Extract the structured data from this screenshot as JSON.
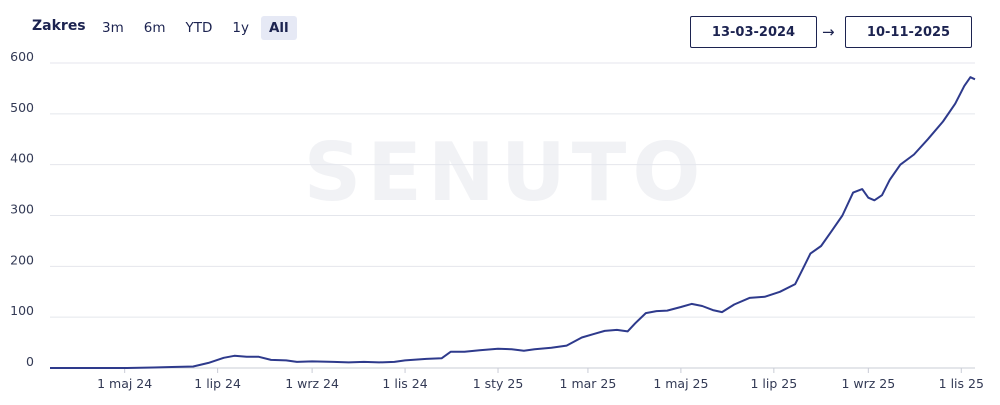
{
  "toolbar": {
    "range_label": "Zakres",
    "range_buttons": [
      "3m",
      "6m",
      "YTD",
      "1y",
      "All"
    ],
    "active_range": "All",
    "date_from": "13-03-2024",
    "date_to": "10-11-2025",
    "arrow": "→"
  },
  "watermark": "SENUTO",
  "colors": {
    "line": "#2e3a8c",
    "grid": "#e4e6ec",
    "text": "#1c2350"
  },
  "chart_data": {
    "type": "line",
    "title": "",
    "xlabel": "",
    "ylabel": "",
    "ylim": [
      0,
      600
    ],
    "y_ticks": [
      0,
      100,
      200,
      300,
      400,
      500,
      600
    ],
    "x_range": [
      "2024-03-13",
      "2025-11-10"
    ],
    "x_ticks": [
      {
        "date": "2024-05-01",
        "label": "1 maj 24"
      },
      {
        "date": "2024-07-01",
        "label": "1 lip 24"
      },
      {
        "date": "2024-09-01",
        "label": "1 wrz 24"
      },
      {
        "date": "2024-11-01",
        "label": "1 lis 24"
      },
      {
        "date": "2025-01-01",
        "label": "1 sty 25"
      },
      {
        "date": "2025-03-01",
        "label": "1 mar 25"
      },
      {
        "date": "2025-05-01",
        "label": "1 maj 25"
      },
      {
        "date": "2025-07-01",
        "label": "1 lip 25"
      },
      {
        "date": "2025-09-01",
        "label": "1 wrz 25"
      },
      {
        "date": "2025-11-01",
        "label": "1 lis 25"
      }
    ],
    "grid": true,
    "legend": "none",
    "series": [
      {
        "points": [
          [
            "2024-03-13",
            0
          ],
          [
            "2024-04-01",
            0
          ],
          [
            "2024-05-01",
            0
          ],
          [
            "2024-05-20",
            1
          ],
          [
            "2024-06-01",
            2
          ],
          [
            "2024-06-15",
            3
          ],
          [
            "2024-06-25",
            10
          ],
          [
            "2024-07-05",
            20
          ],
          [
            "2024-07-12",
            24
          ],
          [
            "2024-07-20",
            22
          ],
          [
            "2024-07-28",
            22
          ],
          [
            "2024-08-05",
            16
          ],
          [
            "2024-08-15",
            15
          ],
          [
            "2024-08-22",
            12
          ],
          [
            "2024-09-01",
            13
          ],
          [
            "2024-09-15",
            12
          ],
          [
            "2024-09-25",
            11
          ],
          [
            "2024-10-05",
            12
          ],
          [
            "2024-10-15",
            11
          ],
          [
            "2024-10-25",
            12
          ],
          [
            "2024-11-01",
            15
          ],
          [
            "2024-11-15",
            18
          ],
          [
            "2024-11-25",
            19
          ],
          [
            "2024-12-01",
            32
          ],
          [
            "2024-12-10",
            32
          ],
          [
            "2024-12-20",
            35
          ],
          [
            "2025-01-01",
            38
          ],
          [
            "2025-01-10",
            37
          ],
          [
            "2025-01-18",
            34
          ],
          [
            "2025-01-25",
            37
          ],
          [
            "2025-02-05",
            40
          ],
          [
            "2025-02-15",
            44
          ],
          [
            "2025-02-25",
            60
          ],
          [
            "2025-03-05",
            67
          ],
          [
            "2025-03-12",
            73
          ],
          [
            "2025-03-20",
            75
          ],
          [
            "2025-03-27",
            72
          ],
          [
            "2025-04-01",
            88
          ],
          [
            "2025-04-08",
            108
          ],
          [
            "2025-04-15",
            112
          ],
          [
            "2025-04-22",
            113
          ],
          [
            "2025-05-01",
            120
          ],
          [
            "2025-05-08",
            126
          ],
          [
            "2025-05-15",
            122
          ],
          [
            "2025-05-22",
            114
          ],
          [
            "2025-05-28",
            110
          ],
          [
            "2025-06-05",
            125
          ],
          [
            "2025-06-15",
            138
          ],
          [
            "2025-06-25",
            140
          ],
          [
            "2025-07-05",
            150
          ],
          [
            "2025-07-15",
            165
          ],
          [
            "2025-07-20",
            195
          ],
          [
            "2025-07-25",
            225
          ],
          [
            "2025-08-01",
            240
          ],
          [
            "2025-08-08",
            270
          ],
          [
            "2025-08-15",
            300
          ],
          [
            "2025-08-22",
            345
          ],
          [
            "2025-08-28",
            352
          ],
          [
            "2025-09-01",
            335
          ],
          [
            "2025-09-05",
            330
          ],
          [
            "2025-09-10",
            340
          ],
          [
            "2025-09-15",
            370
          ],
          [
            "2025-09-22",
            400
          ],
          [
            "2025-10-01",
            420
          ],
          [
            "2025-10-10",
            450
          ],
          [
            "2025-10-20",
            485
          ],
          [
            "2025-10-28",
            520
          ],
          [
            "2025-11-03",
            555
          ],
          [
            "2025-11-07",
            572
          ],
          [
            "2025-11-10",
            568
          ]
        ]
      }
    ]
  }
}
